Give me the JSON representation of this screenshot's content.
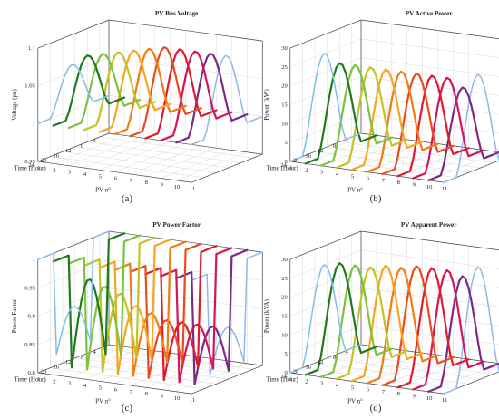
{
  "chart_data": [
    {
      "type": "line3d",
      "title": "PV Bus Voltage",
      "caption": "(a)",
      "zlabel": "Voltage (pu)",
      "ylabel": "Time (Hour)",
      "xlabel": "PV n°",
      "zlim": [
        0.95,
        1.1
      ],
      "ztick_labels": [
        "0.95",
        "1",
        "1.05",
        "1.1"
      ],
      "ytick_labels": [
        "4",
        "8",
        "12",
        "16",
        "20",
        "24"
      ],
      "xtick_labels": [
        "1",
        "2",
        "3",
        "4",
        "5",
        "6",
        "7",
        "8",
        "9",
        "10",
        "11"
      ],
      "grid": true,
      "hours": [
        1,
        2,
        3,
        4,
        5,
        6,
        7,
        8,
        9,
        10,
        11,
        12,
        13,
        14,
        15,
        16,
        17,
        18,
        19,
        20,
        21,
        22,
        23,
        24
      ],
      "series": [
        {
          "pv": 1,
          "peak": 1.06,
          "base": 1.0,
          "width": 1.5,
          "color": "#7fbfe8"
        },
        {
          "pv": 2,
          "peak": 1.075,
          "base": 1.0,
          "width": 2.2,
          "color": "#1f7a1f"
        },
        {
          "pv": 3,
          "peak": 1.08,
          "base": 1.0,
          "width": 2.2,
          "color": "#7cc242"
        },
        {
          "pv": 4,
          "peak": 1.085,
          "base": 1.0,
          "width": 2.2,
          "color": "#c7c223"
        },
        {
          "pv": 5,
          "peak": 1.09,
          "base": 1.0,
          "width": 2.2,
          "color": "#f5a623"
        },
        {
          "pv": 6,
          "peak": 1.095,
          "base": 1.0,
          "width": 2.2,
          "color": "#f07d12"
        },
        {
          "pv": 7,
          "peak": 1.1,
          "base": 1.0,
          "width": 2.2,
          "color": "#e84c1e"
        },
        {
          "pv": 8,
          "peak": 1.1,
          "base": 1.0,
          "width": 2.2,
          "color": "#e0192b"
        },
        {
          "pv": 9,
          "peak": 1.1,
          "base": 1.0,
          "width": 2.2,
          "color": "#d4145a"
        },
        {
          "pv": 10,
          "peak": 1.1,
          "base": 1.0,
          "width": 2.2,
          "color": "#7b2a83"
        },
        {
          "pv": 11,
          "peak": 1.1,
          "base": 1.0,
          "width": 1.5,
          "color": "#8fb9e6"
        }
      ]
    },
    {
      "type": "line3d",
      "title": "PV Active Power",
      "caption": "(b)",
      "zlabel": "Power (kW)",
      "ylabel": "Time (Hour)",
      "xlabel": "PV n°",
      "zlim": [
        0,
        30
      ],
      "ztick_labels": [
        "0",
        "5",
        "10",
        "15",
        "20",
        "25",
        "30"
      ],
      "ytick_labels": [
        "4",
        "8",
        "12",
        "16",
        "20",
        "24"
      ],
      "xtick_labels": [
        "1",
        "2",
        "3",
        "4",
        "5",
        "6",
        "7",
        "8",
        "9",
        "10",
        "11"
      ],
      "grid": true,
      "hours": [
        1,
        2,
        3,
        4,
        5,
        6,
        7,
        8,
        9,
        10,
        11,
        12,
        13,
        14,
        15,
        16,
        17,
        18,
        19,
        20,
        21,
        22,
        23,
        24
      ],
      "series": [
        {
          "pv": 1,
          "peak": 25,
          "base": 0,
          "width": 1.5,
          "color": "#7fbfe8"
        },
        {
          "pv": 2,
          "peak": 23,
          "base": 0,
          "width": 2.2,
          "color": "#1f7a1f"
        },
        {
          "pv": 3,
          "peak": 23,
          "base": 0,
          "width": 2.2,
          "color": "#7cc242"
        },
        {
          "pv": 4,
          "peak": 23,
          "base": 0,
          "width": 2.2,
          "color": "#c7c223"
        },
        {
          "pv": 5,
          "peak": 23,
          "base": 0,
          "width": 2.2,
          "color": "#f5a623"
        },
        {
          "pv": 6,
          "peak": 23,
          "base": 0,
          "width": 2.2,
          "color": "#f07d12"
        },
        {
          "pv": 7,
          "peak": 23,
          "base": 0,
          "width": 2.2,
          "color": "#e84c1e"
        },
        {
          "pv": 8,
          "peak": 23,
          "base": 0,
          "width": 2.2,
          "color": "#e0192b"
        },
        {
          "pv": 9,
          "peak": 23,
          "base": 0,
          "width": 2.2,
          "color": "#d4145a"
        },
        {
          "pv": 10,
          "peak": 21,
          "base": 0,
          "width": 2.2,
          "color": "#7b2a83"
        },
        {
          "pv": 11,
          "peak": 25,
          "base": 0,
          "width": 1.5,
          "color": "#8fb9e6"
        }
      ]
    },
    {
      "type": "line3d",
      "title": "PV Power Factor",
      "caption": "(c)",
      "zlabel": "Power Factor",
      "ylabel": "Time (Hour)",
      "xlabel": "PV n°",
      "zlim": [
        0.8,
        1
      ],
      "ztick_labels": [
        "0.8",
        "0.85",
        "0.9",
        "0.95",
        "1"
      ],
      "ytick_labels": [
        "4",
        "8",
        "12",
        "16",
        "20"
      ],
      "xtick_labels": [
        "1",
        "2",
        "3",
        "4",
        "5",
        "6",
        "7",
        "8",
        "9",
        "10",
        "11"
      ],
      "grid": true,
      "hours": [
        1,
        2,
        3,
        4,
        5,
        6,
        7,
        8,
        9,
        10,
        11,
        12,
        13,
        14,
        15,
        16,
        17,
        18,
        19,
        20,
        21,
        22,
        23,
        24
      ],
      "series": [
        {
          "pv": 1,
          "high": 1.0,
          "low": 0.82,
          "dip": 0.9,
          "width": 1.5,
          "color": "#7fbfe8"
        },
        {
          "pv": 2,
          "high": 1.0,
          "low": 0.8,
          "dip": 0.96,
          "width": 2.2,
          "color": "#1f7a1f"
        },
        {
          "pv": 3,
          "high": 1.0,
          "low": 0.8,
          "dip": 0.95,
          "width": 2.2,
          "color": "#7cc242"
        },
        {
          "pv": 4,
          "high": 1.0,
          "low": 0.8,
          "dip": 0.94,
          "width": 2.2,
          "color": "#c7c223"
        },
        {
          "pv": 5,
          "high": 1.0,
          "low": 0.8,
          "dip": 0.92,
          "width": 2.2,
          "color": "#f5a623"
        },
        {
          "pv": 6,
          "high": 1.0,
          "low": 0.8,
          "dip": 0.91,
          "width": 2.2,
          "color": "#f07d12"
        },
        {
          "pv": 7,
          "high": 1.0,
          "low": 0.8,
          "dip": 0.9,
          "width": 2.2,
          "color": "#e84c1e"
        },
        {
          "pv": 8,
          "high": 1.0,
          "low": 0.8,
          "dip": 0.9,
          "width": 2.2,
          "color": "#e0192b"
        },
        {
          "pv": 9,
          "high": 1.0,
          "low": 0.8,
          "dip": 0.9,
          "width": 2.2,
          "color": "#d4145a"
        },
        {
          "pv": 10,
          "high": 1.0,
          "low": 0.8,
          "dip": 0.9,
          "width": 2.2,
          "color": "#7b2a83"
        },
        {
          "pv": 11,
          "high": 1.0,
          "low": 0.82,
          "dip": 0.9,
          "width": 1.5,
          "color": "#8fb9e6"
        }
      ]
    },
    {
      "type": "line3d",
      "title": "PV Apparent Power",
      "caption": "(d)",
      "zlabel": "Power (kVA)",
      "ylabel": "Time (Hour)",
      "xlabel": "PV n°",
      "zlim": [
        0,
        30
      ],
      "ztick_labels": [
        "0",
        "5",
        "10",
        "15",
        "20",
        "25",
        "30"
      ],
      "ytick_labels": [
        "4",
        "8",
        "12",
        "16",
        "20",
        "24"
      ],
      "xtick_labels": [
        "1",
        "2",
        "3",
        "4",
        "5",
        "6",
        "7",
        "8",
        "9",
        "10",
        "11"
      ],
      "grid": true,
      "hours": [
        1,
        2,
        3,
        4,
        5,
        6,
        7,
        8,
        9,
        10,
        11,
        12,
        13,
        14,
        15,
        16,
        17,
        18,
        19,
        20,
        21,
        22,
        23,
        24
      ],
      "series": [
        {
          "pv": 1,
          "peak": 25,
          "base": 0,
          "width": 1.5,
          "color": "#7fbfe8"
        },
        {
          "pv": 2,
          "peak": 26,
          "base": 0,
          "width": 2.2,
          "color": "#1f7a1f"
        },
        {
          "pv": 3,
          "peak": 26,
          "base": 0,
          "width": 2.2,
          "color": "#7cc242"
        },
        {
          "pv": 4,
          "peak": 26,
          "base": 0,
          "width": 2.2,
          "color": "#c7c223"
        },
        {
          "pv": 5,
          "peak": 27,
          "base": 0,
          "width": 2.2,
          "color": "#f5a623"
        },
        {
          "pv": 6,
          "peak": 27,
          "base": 0,
          "width": 2.2,
          "color": "#f07d12"
        },
        {
          "pv": 7,
          "peak": 28,
          "base": 0,
          "width": 2.2,
          "color": "#e84c1e"
        },
        {
          "pv": 8,
          "peak": 28,
          "base": 0,
          "width": 2.2,
          "color": "#e0192b"
        },
        {
          "pv": 9,
          "peak": 28,
          "base": 0,
          "width": 2.2,
          "color": "#d4145a"
        },
        {
          "pv": 10,
          "peak": 27,
          "base": 0,
          "width": 2.2,
          "color": "#7b2a83"
        },
        {
          "pv": 11,
          "peak": 30,
          "base": 0,
          "width": 1.5,
          "color": "#8fb9e6"
        }
      ]
    }
  ]
}
